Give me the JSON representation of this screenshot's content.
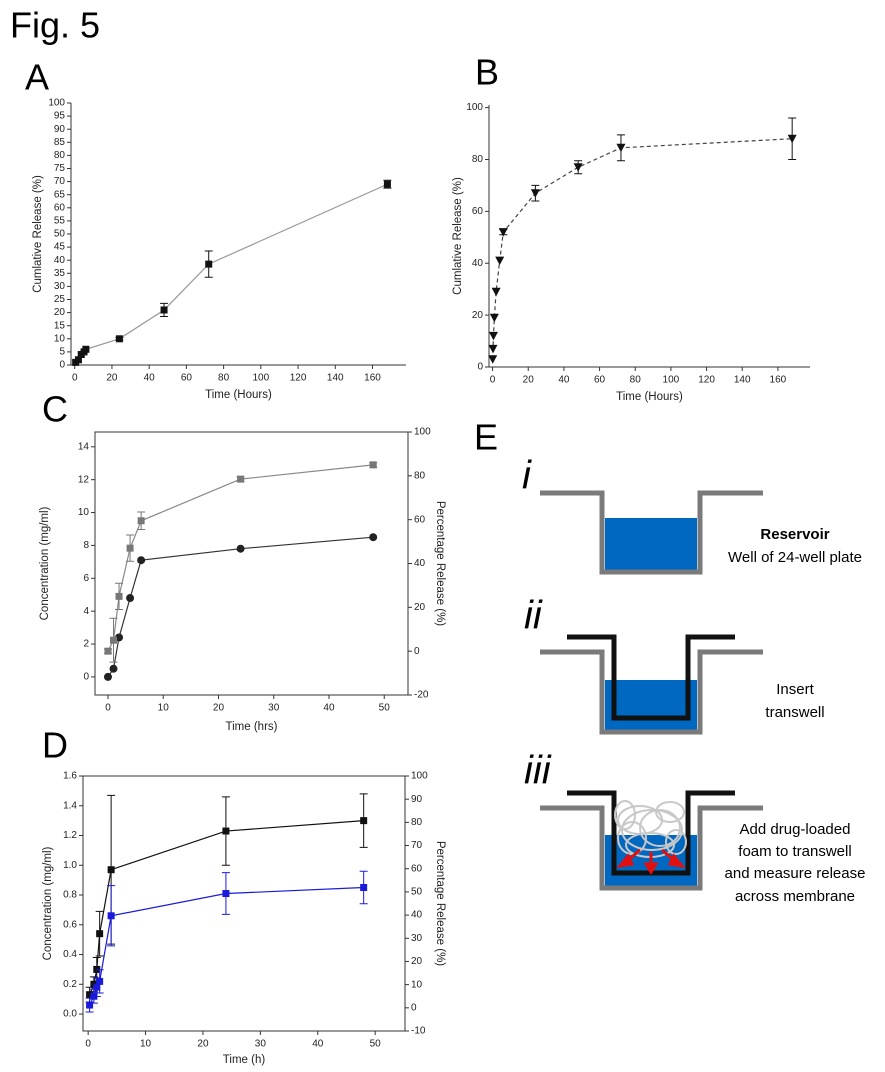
{
  "figure_title": "Fig. 5",
  "chart_data": [
    {
      "type": "line",
      "panel": "A",
      "xlabel": "Time (Hours)",
      "ylabel": "Cumlative Release (%)",
      "x": [
        0.5,
        2,
        3.5,
        5,
        6,
        24,
        48,
        72,
        168
      ],
      "values": [
        1,
        2,
        4,
        5,
        6,
        10,
        21,
        38.5,
        69
      ],
      "errors": [
        null,
        null,
        null,
        null,
        null,
        0.5,
        2.5,
        5,
        1.5
      ],
      "color": "#111111",
      "line_color": "#999999",
      "marker": "square",
      "line_style": "solid",
      "xlim": [
        -2,
        178
      ],
      "xticks": [
        0,
        20,
        40,
        60,
        80,
        100,
        120,
        140,
        160
      ],
      "ylim": [
        0,
        100
      ],
      "yticks": [
        0,
        5,
        10,
        15,
        20,
        25,
        30,
        35,
        40,
        45,
        50,
        55,
        60,
        65,
        70,
        75,
        80,
        85,
        90,
        95,
        100
      ],
      "frame": false
    },
    {
      "type": "line",
      "panel": "B",
      "xlabel": "Time (Hours)",
      "ylabel": "Cumlative Release (%)",
      "x": [
        0.1,
        0.25,
        0.5,
        1,
        2,
        4,
        6,
        24,
        48,
        72,
        168
      ],
      "values": [
        3,
        7,
        12,
        19,
        29,
        41,
        52,
        67,
        77,
        84.5,
        88
      ],
      "errors": [
        null,
        null,
        null,
        null,
        null,
        null,
        1,
        3,
        2.5,
        5,
        8
      ],
      "color": "#111111",
      "line_color": "#444444",
      "marker": "triangle-down",
      "line_style": "dashed",
      "xlim": [
        -2,
        178
      ],
      "xticks": [
        0,
        20,
        40,
        60,
        80,
        100,
        120,
        140,
        160
      ],
      "ylim": [
        0,
        101
      ],
      "yticks": [
        0,
        20,
        40,
        60,
        80,
        100
      ],
      "frame": false
    },
    {
      "type": "line",
      "panel": "C",
      "xlabel": "Time (hrs)",
      "ylabel": "Concentration (mg/ml)",
      "y2label": "Percentage Release (%)",
      "x": [
        0,
        1,
        2,
        4,
        6,
        24,
        48
      ],
      "series": [
        {
          "values": [
            0,
            0.5,
            2.4,
            4.8,
            7.1,
            7.8,
            8.5
          ],
          "color": "#222222",
          "line_color": "#333333",
          "marker": "circle",
          "axis": "y"
        },
        {
          "values": [
            0,
            5,
            25,
            47,
            59.5,
            78.5,
            85
          ],
          "errors": [
            1,
            10,
            6,
            6,
            4,
            1,
            1
          ],
          "color": "#777777",
          "line_color": "#888888",
          "marker": "square",
          "axis": "y2"
        }
      ],
      "xlim": [
        -2.35,
        54.3
      ],
      "xticks": [
        0,
        10,
        20,
        30,
        40,
        50
      ],
      "ylim": [
        -1.1,
        14.9
      ],
      "yticks": [
        0,
        2,
        4,
        6,
        8,
        10,
        12,
        14
      ],
      "y2lim": [
        -20,
        100
      ],
      "y2ticks": [
        -20,
        0,
        20,
        40,
        60,
        80,
        100
      ],
      "frame": true
    },
    {
      "type": "line",
      "panel": "D",
      "xlabel": "Time (h)",
      "ylabel": "Concentration (mg/ml)",
      "y2label": "Percentage Release (%)",
      "x": [
        0.25,
        1,
        1.5,
        2,
        4,
        24,
        48
      ],
      "series": [
        {
          "values": [
            0.13,
            0.2,
            0.3,
            0.54,
            0.97,
            1.23,
            1.3
          ],
          "errors": [
            0.05,
            0.05,
            0.08,
            0.15,
            0.5,
            0.23,
            0.18
          ],
          "color": "#111111",
          "line_color": "#111111",
          "marker": "square",
          "axis": "y"
        },
        {
          "values": [
            1.2,
            5,
            8.9,
            11.4,
            39.7,
            49.3,
            51.9
          ],
          "errors": [
            3,
            3,
            4,
            5,
            13,
            9,
            7
          ],
          "color": "#1a1adb",
          "line_color": "#1a1adb",
          "marker": "square",
          "axis": "y2"
        }
      ],
      "xlim": [
        -0.9,
        55.2
      ],
      "xticks": [
        0,
        10,
        20,
        30,
        40,
        50
      ],
      "ylim": [
        -0.114,
        1.6
      ],
      "yticks": [
        {
          "value": 0,
          "label": "0.0"
        },
        0.2,
        0.4,
        0.6,
        0.8,
        {
          "value": 1,
          "label": "1.0"
        },
        1.2,
        1.4,
        1.6
      ],
      "y2lim": [
        -10,
        100
      ],
      "y2ticks": [
        -10,
        0,
        10,
        20,
        30,
        40,
        50,
        60,
        70,
        80,
        90,
        100
      ],
      "frame": true
    }
  ],
  "diagram": {
    "panel": "E",
    "steps": [
      {
        "numeral": "i",
        "title": "Reservoir",
        "lines": [
          "Well of 24-well plate"
        ]
      },
      {
        "numeral": "ii",
        "lines": [
          "Insert",
          "transwell"
        ]
      },
      {
        "numeral": "iii",
        "lines": [
          "Add drug-loaded",
          "foam to transwell",
          "and measure release",
          "across membrane"
        ]
      }
    ]
  }
}
